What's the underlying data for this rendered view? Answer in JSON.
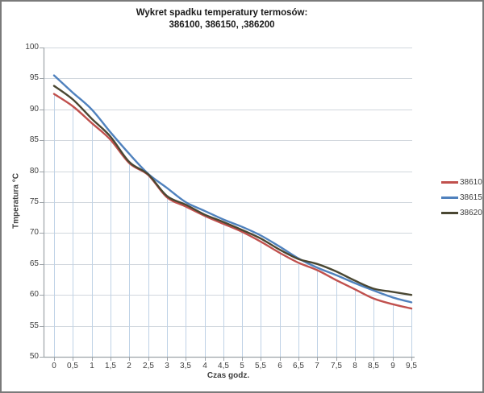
{
  "title": {
    "line1": "Wykret spadku temperatury termosów:",
    "line2": "386100, 386150, ,386200"
  },
  "axes": {
    "y": {
      "title": "Tmperatura °C",
      "min": 50,
      "max": 100,
      "step": 5,
      "tick_labels": [
        "100",
        "95",
        "90",
        "85",
        "80",
        "75",
        "70",
        "65",
        "60",
        "55",
        "50"
      ]
    },
    "x": {
      "title": "Czas godz.",
      "tick_labels": [
        "0",
        "0,5",
        "1",
        "1,5",
        "2",
        "2,5",
        "3",
        "3,5",
        "4",
        "4,5",
        "5",
        "5,5",
        "6",
        "6,5",
        "7",
        "7,5",
        "8",
        "8,5",
        "9",
        "9,5"
      ]
    }
  },
  "legend": {
    "position": "right",
    "entries": [
      {
        "label": "386100",
        "color": "#C0504D"
      },
      {
        "label": "386150",
        "color": "#4F81BD"
      },
      {
        "label": "386200",
        "color": "#4A4732"
      }
    ]
  },
  "colors": {
    "h_gridline": "#D1D7DD",
    "drop_line": "#BFD2E6",
    "axis_line": "#9DA3A8",
    "tick_text": "#3F3F3F",
    "border": "#7A7A7A"
  },
  "chart_data": {
    "type": "line",
    "title": "Wykret spadku temperatury termosów: 386100, 386150, ,386200",
    "xlabel": "Czas godz.",
    "ylabel": "Tmperatura °C",
    "ylim": [
      50,
      100
    ],
    "xlim": [
      0,
      9.5
    ],
    "grid": true,
    "smooth_lines": true,
    "drop_lines": true,
    "legend_position": "right",
    "x": [
      0,
      0.5,
      1,
      1.5,
      2,
      2.5,
      3,
      3.5,
      4,
      4.5,
      5,
      5.5,
      6,
      6.5,
      7,
      7.5,
      8,
      8.5,
      9,
      9.5
    ],
    "series": [
      {
        "name": "386100",
        "color": "#C0504D",
        "values": [
          92.5,
          90.5,
          87.8,
          85.1,
          81.3,
          79.4,
          75.8,
          74.3,
          72.8,
          71.5,
          70.2,
          68.6,
          66.8,
          65.2,
          64.0,
          62.4,
          60.9,
          59.4,
          58.5,
          57.8
        ]
      },
      {
        "name": "386150",
        "color": "#4F81BD",
        "values": [
          95.5,
          92.7,
          90.0,
          86.3,
          82.8,
          79.6,
          77.3,
          75.0,
          73.6,
          72.2,
          71.0,
          69.6,
          67.8,
          65.9,
          64.4,
          63.2,
          61.9,
          60.7,
          59.6,
          58.8
        ]
      },
      {
        "name": "386200",
        "color": "#4A4732",
        "values": [
          93.8,
          91.6,
          88.5,
          85.6,
          81.5,
          79.5,
          76.0,
          74.6,
          73.0,
          71.8,
          70.5,
          69.1,
          67.3,
          65.8,
          65.0,
          63.8,
          62.3,
          61.0,
          60.5,
          60.0
        ]
      }
    ]
  }
}
